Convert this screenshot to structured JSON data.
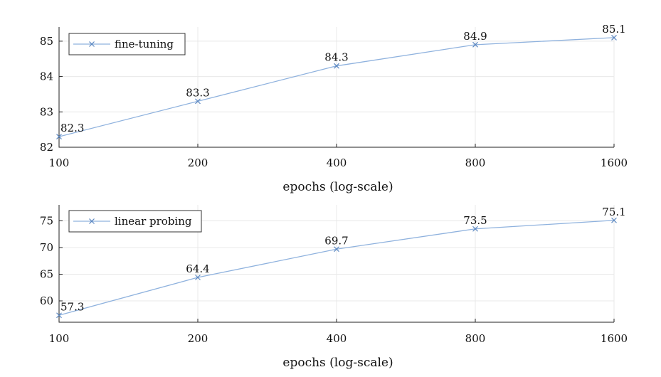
{
  "colors": {
    "series": "#8fb2de",
    "marker": "#5a86c0"
  },
  "chart_data": [
    {
      "type": "line",
      "x": [
        100,
        200,
        400,
        800,
        1600
      ],
      "x_tick_labels": [
        "100",
        "200",
        "400",
        "800",
        "1600"
      ],
      "xscale": "log",
      "xlabel": "epochs (log-scale)",
      "ylabel": "",
      "ylim": [
        82,
        85.4
      ],
      "yticks": [
        82,
        83,
        84,
        85
      ],
      "grid": true,
      "legend": "top-left",
      "series": [
        {
          "name": "fine-tuning",
          "values": [
            82.3,
            83.3,
            84.3,
            84.9,
            85.1
          ],
          "labels": [
            "82.3",
            "83.3",
            "84.3",
            "84.9",
            "85.1"
          ]
        }
      ]
    },
    {
      "type": "line",
      "x": [
        100,
        200,
        400,
        800,
        1600
      ],
      "x_tick_labels": [
        "100",
        "200",
        "400",
        "800",
        "1600"
      ],
      "xscale": "log",
      "xlabel": "epochs (log-scale)",
      "ylabel": "",
      "ylim": [
        56,
        78
      ],
      "yticks": [
        60,
        65,
        70,
        75
      ],
      "grid": true,
      "legend": "top-left",
      "series": [
        {
          "name": "linear probing",
          "values": [
            57.3,
            64.4,
            69.7,
            73.5,
            75.1
          ],
          "labels": [
            "57.3",
            "64.4",
            "69.7",
            "73.5",
            "75.1"
          ]
        }
      ]
    }
  ]
}
